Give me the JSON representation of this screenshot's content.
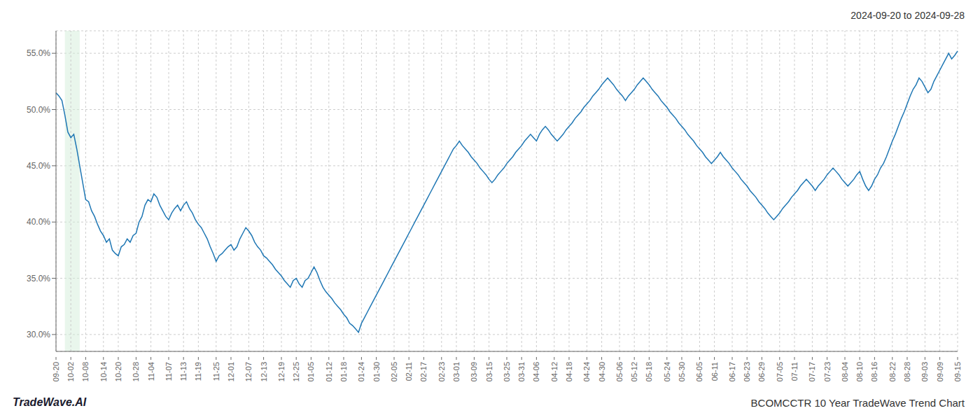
{
  "chart_data": {
    "type": "line",
    "title": "BCOMCCTR 10 Year TradeWave Trend Chart",
    "subtitle": "2024-09-20 to 2024-09-28",
    "annotations": [
      "TradeWave.AI"
    ],
    "color": "#1f77b4",
    "grid": true,
    "ylim": [
      28.5,
      57.0
    ],
    "yticks": [
      {
        "value": 30.0,
        "label": "30.0%"
      },
      {
        "value": 35.0,
        "label": "35.0%"
      },
      {
        "value": 40.0,
        "label": "40.0%"
      },
      {
        "value": 45.0,
        "label": "45.0%"
      },
      {
        "value": 50.0,
        "label": "50.0%"
      },
      {
        "value": 55.0,
        "label": "55.0%"
      }
    ],
    "highlight": {
      "x": [
        3,
        8
      ],
      "color": "#d4edda"
    },
    "categories": [
      "09-20",
      null,
      null,
      null,
      null,
      "10-02",
      null,
      null,
      null,
      null,
      "10-08",
      null,
      null,
      null,
      null,
      null,
      "10-14",
      null,
      null,
      null,
      null,
      "10-20",
      null,
      null,
      null,
      null,
      null,
      "10-28",
      null,
      null,
      null,
      null,
      "11-04",
      null,
      null,
      null,
      null,
      null,
      "11-07",
      null,
      null,
      null,
      null,
      "11-13",
      null,
      null,
      null,
      null,
      "11-19",
      null,
      null,
      null,
      null,
      null,
      "11-25",
      null,
      null,
      null,
      null,
      "12-01",
      null,
      null,
      null,
      null,
      null,
      "12-07",
      null,
      null,
      null,
      null,
      "12-13",
      null,
      null,
      null,
      null,
      null,
      "12-19",
      null,
      null,
      null,
      null,
      "12-25",
      null,
      null,
      null,
      null,
      "01-05",
      null,
      null,
      null,
      null,
      null,
      "01-12",
      null,
      null,
      null,
      null,
      "01-18",
      null,
      null,
      null,
      null,
      null,
      "01-24",
      null,
      null,
      null,
      null,
      "01-30",
      null,
      null,
      null,
      null,
      null,
      "02-05",
      null,
      null,
      null,
      null,
      "02-11",
      null,
      null,
      null,
      null,
      "02-17",
      null,
      null,
      null,
      null,
      null,
      "02-23",
      null,
      null,
      null,
      null,
      "03-01",
      null,
      null,
      null,
      null,
      null,
      "03-09",
      null,
      null,
      null,
      null,
      "03-15",
      null,
      null,
      null,
      null,
      null,
      "03-25",
      null,
      null,
      null,
      null,
      "03-31",
      null,
      null,
      null,
      null,
      "04-06",
      null,
      null,
      null,
      null,
      null,
      "04-12",
      null,
      null,
      null,
      null,
      "04-18",
      null,
      null,
      null,
      null,
      null,
      "04-24",
      null,
      null,
      null,
      null,
      "04-30",
      null,
      null,
      null,
      null,
      null,
      "05-06",
      null,
      null,
      null,
      null,
      "05-12",
      null,
      null,
      null,
      null,
      "05-18",
      null,
      null,
      null,
      null,
      null,
      "05-24",
      null,
      null,
      null,
      null,
      "05-30",
      null,
      null,
      null,
      null,
      null,
      "06-05",
      null,
      null,
      null,
      null,
      "06-11",
      null,
      null,
      null,
      null,
      null,
      "06-17",
      null,
      null,
      null,
      null,
      "06-23",
      null,
      null,
      null,
      null,
      "06-29",
      null,
      null,
      null,
      null,
      null,
      "07-05",
      null,
      null,
      null,
      null,
      "07-11",
      null,
      null,
      null,
      null,
      null,
      "07-17",
      null,
      null,
      null,
      null,
      "07-23",
      null,
      null,
      null,
      null,
      null,
      "08-04",
      null,
      null,
      null,
      null,
      "08-10",
      null,
      null,
      null,
      null,
      "08-16",
      null,
      null,
      null,
      null,
      null,
      "08-22",
      null,
      null,
      null,
      null,
      "08-28",
      null,
      null,
      null,
      null,
      null,
      "09-03",
      null,
      null,
      null,
      null,
      "09-09",
      null,
      null,
      null,
      null,
      null,
      "09-15"
    ],
    "values": [
      51.5,
      51.2,
      50.8,
      49.5,
      48.0,
      47.5,
      47.8,
      46.5,
      45.0,
      43.5,
      42.0,
      41.8,
      41.0,
      40.5,
      39.8,
      39.2,
      38.8,
      38.2,
      38.5,
      37.5,
      37.2,
      37.0,
      37.8,
      38.0,
      38.5,
      38.2,
      38.8,
      39.0,
      40.0,
      40.5,
      41.5,
      42.0,
      41.8,
      42.5,
      42.2,
      41.5,
      41.0,
      40.5,
      40.2,
      40.8,
      41.2,
      41.5,
      41.0,
      41.5,
      41.8,
      41.2,
      40.8,
      40.2,
      39.8,
      39.5,
      39.0,
      38.5,
      37.8,
      37.2,
      36.5,
      37.0,
      37.2,
      37.5,
      37.8,
      38.0,
      37.5,
      37.8,
      38.5,
      39.0,
      39.5,
      39.2,
      38.8,
      38.2,
      37.8,
      37.5,
      37.0,
      36.8,
      36.5,
      36.2,
      35.8,
      35.5,
      35.2,
      34.8,
      34.5,
      34.2,
      34.8,
      35.0,
      34.5,
      34.2,
      34.8,
      35.0,
      35.5,
      36.0,
      35.5,
      34.8,
      34.2,
      33.8,
      33.5,
      33.2,
      32.8,
      32.5,
      32.2,
      31.8,
      31.5,
      31.0,
      30.8,
      30.5,
      30.2,
      31.0,
      31.5,
      32.0,
      32.5,
      33.0,
      33.5,
      34.0,
      34.5,
      35.0,
      35.5,
      36.0,
      36.5,
      37.0,
      37.5,
      38.0,
      38.5,
      39.0,
      39.5,
      40.0,
      40.5,
      41.0,
      41.5,
      42.0,
      42.5,
      43.0,
      43.5,
      44.0,
      44.5,
      45.0,
      45.5,
      46.0,
      46.5,
      46.8,
      47.2,
      46.8,
      46.5,
      46.2,
      45.8,
      45.5,
      45.2,
      44.8,
      44.5,
      44.2,
      43.8,
      43.5,
      43.8,
      44.2,
      44.5,
      44.8,
      45.2,
      45.5,
      45.8,
      46.2,
      46.5,
      46.8,
      47.2,
      47.5,
      47.8,
      47.5,
      47.2,
      47.8,
      48.2,
      48.5,
      48.2,
      47.8,
      47.5,
      47.2,
      47.5,
      47.8,
      48.2,
      48.5,
      48.8,
      49.2,
      49.5,
      49.8,
      50.2,
      50.5,
      50.8,
      51.2,
      51.5,
      51.8,
      52.2,
      52.5,
      52.8,
      52.5,
      52.2,
      51.8,
      51.5,
      51.2,
      50.8,
      51.2,
      51.5,
      51.8,
      52.2,
      52.5,
      52.8,
      52.5,
      52.2,
      51.8,
      51.5,
      51.2,
      50.8,
      50.5,
      50.2,
      49.8,
      49.5,
      49.2,
      48.8,
      48.5,
      48.2,
      47.8,
      47.5,
      47.2,
      46.8,
      46.5,
      46.2,
      45.8,
      45.5,
      45.2,
      45.5,
      45.8,
      46.2,
      45.8,
      45.5,
      45.2,
      44.8,
      44.5,
      44.2,
      43.8,
      43.5,
      43.2,
      42.8,
      42.5,
      42.2,
      41.8,
      41.5,
      41.2,
      40.8,
      40.5,
      40.2,
      40.5,
      40.8,
      41.2,
      41.5,
      41.8,
      42.2,
      42.5,
      42.8,
      43.2,
      43.5,
      43.8,
      43.5,
      43.2,
      42.8,
      43.2,
      43.5,
      43.8,
      44.2,
      44.5,
      44.8,
      44.5,
      44.2,
      43.8,
      43.5,
      43.2,
      43.5,
      43.8,
      44.2,
      44.5,
      43.8,
      43.2,
      42.8,
      43.2,
      43.8,
      44.2,
      44.8,
      45.2,
      45.8,
      46.5,
      47.2,
      47.8,
      48.5,
      49.2,
      49.8,
      50.5,
      51.2,
      51.8,
      52.2,
      52.8,
      52.5,
      52.0,
      51.5,
      51.8,
      52.5,
      53.0,
      53.5,
      54.0,
      54.5,
      55.0,
      54.5,
      54.8,
      55.2
    ]
  }
}
